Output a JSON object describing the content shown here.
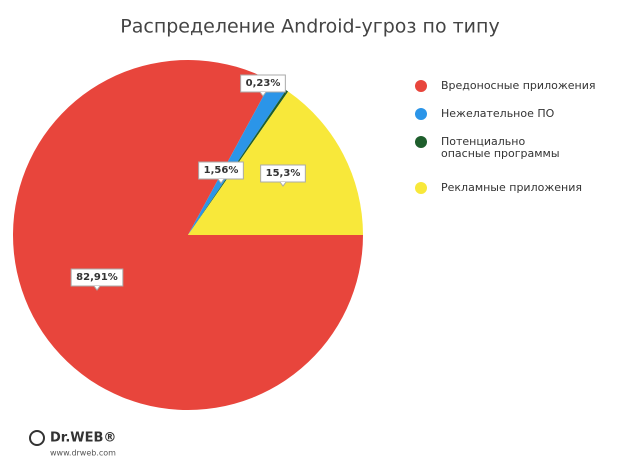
{
  "chart_data": {
    "type": "pie",
    "title": "Распределение Android-угроз по типу",
    "categories": [
      "Вредоносные приложения",
      "Нежелательное ПО",
      "Потенциально опасные программы",
      "Рекламные приложения"
    ],
    "values": [
      82.91,
      1.56,
      0.23,
      15.3
    ],
    "value_labels": [
      "82,91%",
      "1,56%",
      "0,23%",
      "15,3%"
    ],
    "colors": [
      "#e8453c",
      "#2b95e8",
      "#1e5e2c",
      "#f8e83a"
    ],
    "legend": "right"
  },
  "footer": {
    "logo": "Dr.WEB®",
    "url": "www.drweb.com"
  }
}
